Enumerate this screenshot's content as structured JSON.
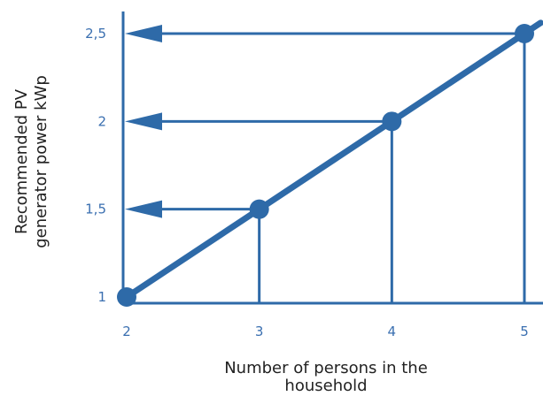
{
  "chart_data": {
    "type": "line",
    "title": "",
    "xlabel_lines": [
      "Number of persons in the",
      "household"
    ],
    "ylabel_lines": [
      "Recommended PV",
      "generator power kWp"
    ],
    "x_ticks": [
      {
        "value": 2,
        "label": "2"
      },
      {
        "value": 3,
        "label": "3"
      },
      {
        "value": 4,
        "label": "4"
      },
      {
        "value": 5,
        "label": "5"
      }
    ],
    "y_ticks": [
      {
        "value": 1,
        "label": "1"
      },
      {
        "value": 1.5,
        "label": "1,5"
      },
      {
        "value": 2,
        "label": "2"
      },
      {
        "value": 2.5,
        "label": "2,5"
      }
    ],
    "xlim": [
      2,
      5
    ],
    "ylim": [
      1,
      2.5
    ],
    "grid": false,
    "series": [
      {
        "x": [
          2,
          3,
          4,
          5
        ],
        "values": [
          1,
          1.5,
          2,
          2.5
        ]
      }
    ],
    "guides": [
      {
        "x": 3,
        "y": 1.5
      },
      {
        "x": 4,
        "y": 2
      },
      {
        "x": 5,
        "y": 2.5
      }
    ],
    "colors": {
      "line": "#2e6aa8",
      "axis": "#2e6aa8",
      "tick_text": "#3a6fb0",
      "title_text": "#222222"
    }
  }
}
